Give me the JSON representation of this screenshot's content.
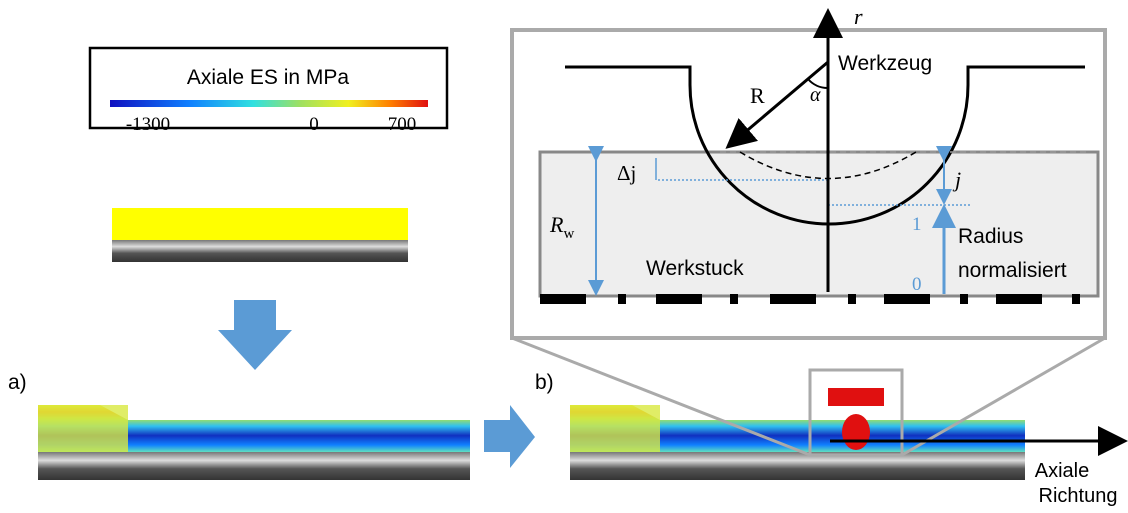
{
  "legend": {
    "title": "Axiale ES in MPa",
    "ticks": [
      "-1300",
      "0",
      "700"
    ]
  },
  "panels": {
    "a": {
      "label": "a)"
    },
    "b": {
      "label": "b)"
    }
  },
  "detail": {
    "axis_label": "r",
    "tool_label": "Werkzeug",
    "tool_radius": "R",
    "angle": "α",
    "delta_j": "Δj",
    "j": "j",
    "workpiece_radius": {
      "main": "R",
      "sub": "w"
    },
    "radius_scale": {
      "top": "1",
      "bottom": "0",
      "label": [
        "Radius",
        "normalisiert"
      ]
    },
    "workpiece_label": "Werkstuck"
  },
  "axial_direction": [
    "Axiale",
    "Richtung"
  ]
}
